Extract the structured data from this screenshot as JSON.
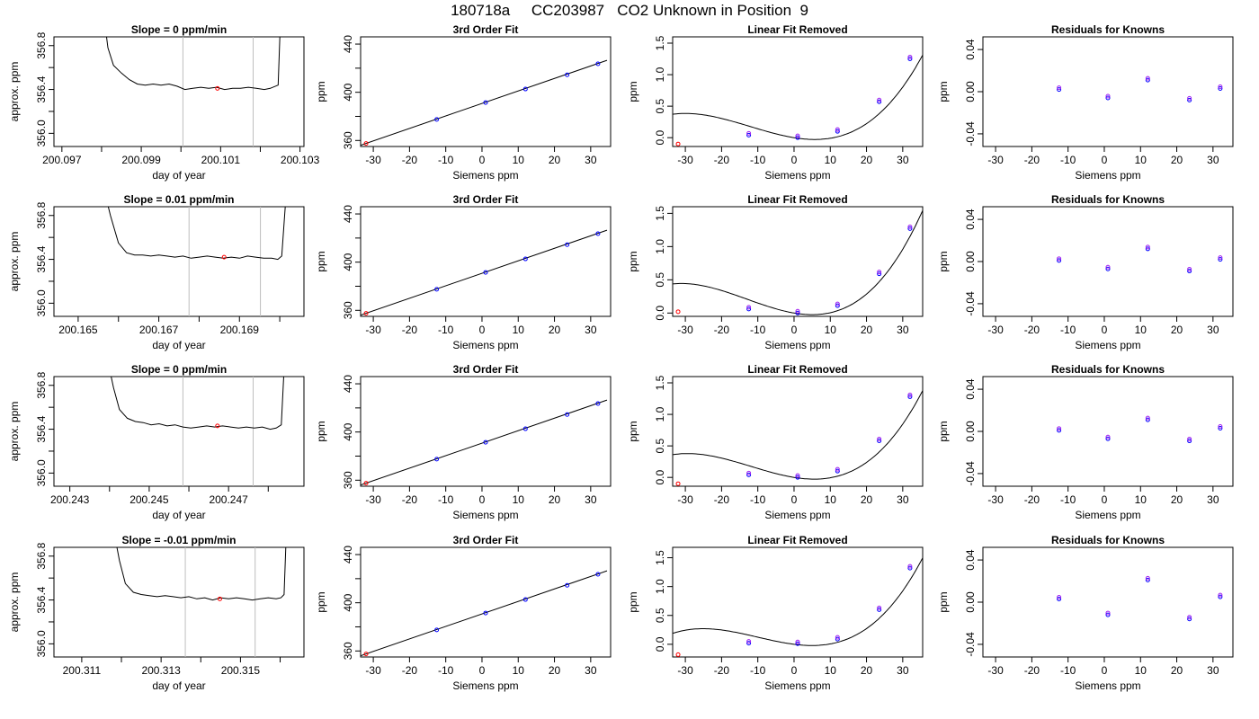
{
  "title": "180718a     CC203987   CO2 Unknown in Position  9",
  "colors": {
    "data_line": "#000000",
    "points_known": "#0000ff",
    "points_known_alt": "#a020f0",
    "point_unknown": "#ff0000",
    "guide": "#bebebe"
  },
  "chart_data": [
    {
      "type": "line",
      "panel": "time-series",
      "title": "Slope =  0  ppm/min",
      "xlabel": "day of year",
      "ylabel": "approx. ppm",
      "xlim": [
        200.0968,
        200.1031
      ],
      "ylim": [
        355.88,
        356.88
      ],
      "xticks": [
        200.097,
        200.098,
        200.099,
        200.1,
        200.101,
        200.102,
        200.103
      ],
      "xtick_labels": [
        "200.097",
        "",
        "200.099",
        "",
        "200.101",
        "",
        "200.103"
      ],
      "yticks": [
        356.0,
        356.2,
        356.4,
        356.6,
        356.8
      ],
      "ytick_labels": [
        "356.0",
        "",
        "356.4",
        "",
        "356.8"
      ],
      "vlines": [
        200.10005,
        200.10182
      ],
      "series": [
        {
          "x": [
            200.0981,
            200.09816,
            200.0983,
            200.0985,
            200.0987,
            200.0989,
            200.0991,
            200.0993,
            200.0995,
            200.0997,
            200.0999,
            200.1001,
            200.1003,
            200.1005,
            200.1007,
            200.1009,
            200.1011,
            200.1013,
            200.1015,
            200.1017,
            200.1019,
            200.1021,
            200.10225,
            200.10245,
            200.1025
          ],
          "y": [
            356.95,
            356.78,
            356.62,
            356.55,
            356.49,
            356.45,
            356.44,
            356.45,
            356.44,
            356.45,
            356.43,
            356.4,
            356.41,
            356.42,
            356.41,
            356.42,
            356.4,
            356.41,
            356.41,
            356.42,
            356.41,
            356.4,
            356.41,
            356.44,
            356.95
          ]
        }
      ],
      "marker": {
        "x": 200.10092,
        "y": 356.41
      }
    },
    {
      "type": "scatter",
      "panel": "fit",
      "title": "3rd Order Fit",
      "xlabel": "Siemens ppm",
      "ylabel": "ppm",
      "xlim": [
        -33.5,
        35.5
      ],
      "ylim": [
        355,
        446
      ],
      "xticks": [
        -30,
        -20,
        -10,
        0,
        10,
        20,
        30
      ],
      "yticks": [
        360,
        380,
        400,
        420,
        440
      ],
      "ytick_labels": [
        "360",
        "",
        "400",
        "",
        "440"
      ],
      "x": [
        -32,
        -12.5,
        1,
        12,
        23.5,
        32
      ],
      "y": [
        357.5,
        377.5,
        391.5,
        402.7,
        414.5,
        423.6
      ],
      "curve": {
        "x1": -33.5,
        "y1": 356.0,
        "x2": 34.5,
        "y2": 426.5
      }
    },
    {
      "type": "scatter",
      "panel": "linear-removed",
      "title": "Linear Fit Removed",
      "xlabel": "Siemens ppm",
      "ylabel": "ppm",
      "xlim": [
        -33.5,
        35.5
      ],
      "ylim": [
        -0.14,
        1.6
      ],
      "xticks": [
        -30,
        -20,
        -10,
        0,
        10,
        20,
        30
      ],
      "yticks": [
        0.0,
        0.5,
        1.0,
        1.5
      ],
      "ytick_labels": [
        "0.0",
        "0.5",
        "1.0",
        "1.5"
      ],
      "x": [
        -32,
        -12.5,
        1,
        12,
        23.5,
        32
      ],
      "y": [
        -0.1,
        0.04,
        0.0,
        0.1,
        0.57,
        1.25
      ],
      "poly": [
        0.0,
        -0.0093,
        0.00066,
        1.81e-05
      ]
    },
    {
      "type": "scatter",
      "panel": "residuals",
      "title": "Residuals for Knowns",
      "xlabel": "Siemens ppm",
      "ylabel": "ppm",
      "xlim": [
        -33.5,
        35.5
      ],
      "ylim": [
        -0.052,
        0.052
      ],
      "xticks": [
        -30,
        -20,
        -10,
        0,
        10,
        20,
        30
      ],
      "yticks": [
        -0.04,
        0.0,
        0.04
      ],
      "ytick_labels": [
        "-0.04",
        "0.00",
        "0.04"
      ],
      "x": [
        -12.5,
        1,
        12,
        23.5,
        32
      ],
      "y": [
        0.002,
        -0.006,
        0.011,
        -0.008,
        0.003
      ]
    },
    {
      "type": "line",
      "panel": "time-series",
      "title": "Slope =  0.01  ppm/min",
      "xlabel": "day of year",
      "ylabel": "approx. ppm",
      "xlim": [
        200.1644,
        200.1706
      ],
      "ylim": [
        355.88,
        356.88
      ],
      "xticks": [
        200.165,
        200.166,
        200.167,
        200.168,
        200.169,
        200.17
      ],
      "xtick_labels": [
        "200.165",
        "",
        "200.167",
        "",
        "200.169",
        ""
      ],
      "yticks": [
        356.0,
        356.2,
        356.4,
        356.6,
        356.8
      ],
      "ytick_labels": [
        "356.0",
        "",
        "356.4",
        "",
        "356.8"
      ],
      "vlines": [
        200.16775,
        200.16952
      ],
      "series": [
        {
          "x": [
            200.1657,
            200.1658,
            200.166,
            200.1662,
            200.1664,
            200.1666,
            200.1668,
            200.167,
            200.1672,
            200.1674,
            200.1676,
            200.1678,
            200.168,
            200.1682,
            200.1684,
            200.1686,
            200.1688,
            200.169,
            200.1692,
            200.1694,
            200.1696,
            200.1698,
            200.16995,
            200.17005,
            200.17015
          ],
          "y": [
            356.95,
            356.8,
            356.55,
            356.46,
            356.44,
            356.44,
            356.43,
            356.44,
            356.43,
            356.42,
            356.43,
            356.41,
            356.42,
            356.43,
            356.42,
            356.41,
            356.42,
            356.41,
            356.43,
            356.42,
            356.41,
            356.41,
            356.4,
            356.43,
            356.95
          ]
        }
      ],
      "marker": {
        "x": 200.16862,
        "y": 356.42
      }
    },
    {
      "type": "scatter",
      "panel": "fit",
      "title": "3rd Order Fit",
      "xlabel": "Siemens ppm",
      "ylabel": "ppm",
      "xlim": [
        -33.5,
        35.5
      ],
      "ylim": [
        355,
        446
      ],
      "xticks": [
        -30,
        -20,
        -10,
        0,
        10,
        20,
        30
      ],
      "yticks": [
        360,
        380,
        400,
        420,
        440
      ],
      "ytick_labels": [
        "360",
        "",
        "400",
        "",
        "440"
      ],
      "x": [
        -32,
        -12.5,
        1,
        12,
        23.5,
        32
      ],
      "y": [
        357.5,
        377.5,
        391.5,
        402.7,
        414.5,
        423.6
      ],
      "curve": {
        "x1": -33.5,
        "y1": 356.0,
        "x2": 34.5,
        "y2": 426.5
      }
    },
    {
      "type": "scatter",
      "panel": "linear-removed",
      "title": "Linear Fit Removed",
      "xlabel": "Siemens ppm",
      "ylabel": "ppm",
      "xlim": [
        -33.5,
        35.5
      ],
      "ylim": [
        -0.05,
        1.6
      ],
      "xticks": [
        -30,
        -20,
        -10,
        0,
        10,
        20,
        30
      ],
      "yticks": [
        0.0,
        0.5,
        1.0,
        1.5
      ],
      "ytick_labels": [
        "0.0",
        "0.5",
        "1.0",
        "1.5"
      ],
      "x": [
        -32,
        -12.5,
        1,
        12,
        23.5,
        32
      ],
      "y": [
        0.02,
        0.06,
        0.0,
        0.11,
        0.59,
        1.27
      ],
      "poly": [
        0.0,
        -0.0093,
        0.00078,
        1.99e-05
      ]
    },
    {
      "type": "scatter",
      "panel": "residuals",
      "title": "Residuals for Knowns",
      "xlabel": "Siemens ppm",
      "ylabel": "ppm",
      "xlim": [
        -33.5,
        35.5
      ],
      "ylim": [
        -0.052,
        0.052
      ],
      "xticks": [
        -30,
        -20,
        -10,
        0,
        10,
        20,
        30
      ],
      "yticks": [
        -0.04,
        0.0,
        0.04
      ],
      "ytick_labels": [
        "-0.04",
        "0.00",
        "0.04"
      ],
      "x": [
        -12.5,
        1,
        12,
        23.5,
        32
      ],
      "y": [
        0.001,
        -0.007,
        0.012,
        -0.009,
        0.002
      ]
    },
    {
      "type": "line",
      "panel": "time-series",
      "title": "Slope =  0  ppm/min",
      "xlabel": "day of year",
      "ylabel": "approx. ppm",
      "xlim": [
        200.2426,
        200.2489
      ],
      "ylim": [
        355.88,
        356.88
      ],
      "xticks": [
        200.243,
        200.244,
        200.245,
        200.246,
        200.247,
        200.248
      ],
      "xtick_labels": [
        "200.243",
        "",
        "200.245",
        "",
        "200.247",
        ""
      ],
      "yticks": [
        356.0,
        356.2,
        356.4,
        356.6,
        356.8
      ],
      "ytick_labels": [
        "356.0",
        "",
        "356.4",
        "",
        "356.8"
      ],
      "vlines": [
        200.24585,
        200.24762
      ],
      "series": [
        {
          "x": [
            200.244,
            200.2441,
            200.24425,
            200.24445,
            200.24465,
            200.24485,
            200.24505,
            200.24525,
            200.24545,
            200.24565,
            200.24585,
            200.24605,
            200.24625,
            200.24645,
            200.24665,
            200.24685,
            200.24705,
            200.24725,
            200.24745,
            200.24765,
            200.24785,
            200.24805,
            200.2482,
            200.24833,
            200.2484
          ],
          "y": [
            356.95,
            356.78,
            356.58,
            356.5,
            356.47,
            356.46,
            356.44,
            356.45,
            356.43,
            356.44,
            356.42,
            356.41,
            356.42,
            356.43,
            356.42,
            356.43,
            356.42,
            356.41,
            356.42,
            356.41,
            356.42,
            356.4,
            356.41,
            356.44,
            356.95
          ]
        }
      ],
      "marker": {
        "x": 200.24672,
        "y": 356.43
      }
    },
    {
      "type": "scatter",
      "panel": "fit",
      "title": "3rd Order Fit",
      "xlabel": "Siemens ppm",
      "ylabel": "ppm",
      "xlim": [
        -33.5,
        35.5
      ],
      "ylim": [
        355,
        446
      ],
      "xticks": [
        -30,
        -20,
        -10,
        0,
        10,
        20,
        30
      ],
      "yticks": [
        360,
        380,
        400,
        420,
        440
      ],
      "ytick_labels": [
        "360",
        "",
        "400",
        "",
        "440"
      ],
      "x": [
        -32,
        -12.5,
        1,
        12,
        23.5,
        32
      ],
      "y": [
        357.5,
        377.5,
        391.5,
        402.7,
        414.5,
        423.6
      ],
      "curve": {
        "x1": -33.5,
        "y1": 356.0,
        "x2": 34.5,
        "y2": 426.5
      }
    },
    {
      "type": "scatter",
      "panel": "linear-removed",
      "title": "Linear Fit Removed",
      "xlabel": "Siemens ppm",
      "ylabel": "ppm",
      "xlim": [
        -33.5,
        35.5
      ],
      "ylim": [
        -0.14,
        1.6
      ],
      "xticks": [
        -30,
        -20,
        -10,
        0,
        10,
        20,
        30
      ],
      "yticks": [
        0.0,
        0.5,
        1.0,
        1.5
      ],
      "ytick_labels": [
        "0.0",
        "0.5",
        "1.0",
        "1.5"
      ],
      "x": [
        -32,
        -12.5,
        1,
        12,
        23.5,
        32
      ],
      "y": [
        -0.1,
        0.04,
        0.0,
        0.1,
        0.58,
        1.28
      ],
      "poly": [
        0.0,
        -0.0093,
        0.00068,
        1.9e-05
      ]
    },
    {
      "type": "scatter",
      "panel": "residuals",
      "title": "Residuals for Knowns",
      "xlabel": "Siemens ppm",
      "ylabel": "ppm",
      "xlim": [
        -33.5,
        35.5
      ],
      "ylim": [
        -0.052,
        0.052
      ],
      "xticks": [
        -30,
        -20,
        -10,
        0,
        10,
        20,
        30
      ],
      "yticks": [
        -0.04,
        0.0,
        0.04
      ],
      "ytick_labels": [
        "-0.04",
        "0.00",
        "0.04"
      ],
      "x": [
        -12.5,
        1,
        12,
        23.5,
        32
      ],
      "y": [
        0.001,
        -0.007,
        0.011,
        -0.009,
        0.003
      ]
    },
    {
      "type": "line",
      "panel": "time-series",
      "title": "Slope =  -0.01  ppm/min",
      "xlabel": "day of year",
      "ylabel": "approx. ppm",
      "xlim": [
        200.3103,
        200.3166
      ],
      "ylim": [
        355.88,
        356.88
      ],
      "xticks": [
        200.311,
        200.312,
        200.313,
        200.314,
        200.315,
        200.316
      ],
      "xtick_labels": [
        "200.311",
        "",
        "200.313",
        "",
        "200.315",
        ""
      ],
      "yticks": [
        356.0,
        356.2,
        356.4,
        356.6,
        356.8
      ],
      "ytick_labels": [
        "356.0",
        "",
        "356.4",
        "",
        "356.8"
      ],
      "vlines": [
        200.31361,
        200.31537
      ],
      "series": [
        {
          "x": [
            200.31185,
            200.31195,
            200.3121,
            200.3123,
            200.3125,
            200.3127,
            200.3129,
            200.3131,
            200.3133,
            200.3135,
            200.3137,
            200.3139,
            200.3141,
            200.3143,
            200.3145,
            200.3147,
            200.3149,
            200.3151,
            200.3153,
            200.3155,
            200.3157,
            200.3159,
            200.31602,
            200.3161,
            200.31615
          ],
          "y": [
            356.95,
            356.76,
            356.55,
            356.47,
            356.45,
            356.44,
            356.43,
            356.44,
            356.43,
            356.42,
            356.43,
            356.41,
            356.42,
            356.4,
            356.42,
            356.41,
            356.42,
            356.41,
            356.4,
            356.41,
            356.42,
            356.41,
            356.42,
            356.45,
            356.95
          ]
        }
      ],
      "marker": {
        "x": 200.31448,
        "y": 356.41
      }
    },
    {
      "type": "scatter",
      "panel": "fit",
      "title": "3rd Order Fit",
      "xlabel": "Siemens ppm",
      "ylabel": "ppm",
      "xlim": [
        -33.5,
        35.5
      ],
      "ylim": [
        355,
        446
      ],
      "xticks": [
        -30,
        -20,
        -10,
        0,
        10,
        20,
        30
      ],
      "yticks": [
        360,
        380,
        400,
        420,
        440
      ],
      "ytick_labels": [
        "360",
        "",
        "400",
        "",
        "440"
      ],
      "x": [
        -32,
        -12.5,
        1,
        12,
        23.5,
        32
      ],
      "y": [
        357.5,
        377.5,
        391.5,
        402.7,
        414.5,
        423.6
      ],
      "curve": {
        "x1": -33.5,
        "y1": 356.0,
        "x2": 34.5,
        "y2": 426.5
      }
    },
    {
      "type": "scatter",
      "panel": "linear-removed",
      "title": "Linear Fit Removed",
      "xlabel": "Siemens ppm",
      "ylabel": "ppm",
      "xlim": [
        -33.5,
        35.5
      ],
      "ylim": [
        -0.22,
        1.68
      ],
      "xticks": [
        -30,
        -20,
        -10,
        0,
        10,
        20,
        30
      ],
      "yticks": [
        0.0,
        0.5,
        1.0,
        1.5
      ],
      "ytick_labels": [
        "0.0",
        "0.5",
        "1.0",
        "1.5"
      ],
      "x": [
        -32,
        -12.5,
        1,
        12,
        23.5,
        32
      ],
      "y": [
        -0.18,
        0.02,
        0.01,
        0.09,
        0.6,
        1.32
      ],
      "poly": [
        0.0,
        -0.008,
        0.00065,
        2.15e-05
      ]
    },
    {
      "type": "scatter",
      "panel": "residuals",
      "title": "Residuals for Knowns",
      "xlabel": "Siemens ppm",
      "ylabel": "ppm",
      "xlim": [
        -33.5,
        35.5
      ],
      "ylim": [
        -0.052,
        0.052
      ],
      "xticks": [
        -30,
        -20,
        -10,
        0,
        10,
        20,
        30
      ],
      "yticks": [
        -0.04,
        0.0,
        0.04
      ],
      "ytick_labels": [
        "-0.04",
        "0.00",
        "0.04"
      ],
      "x": [
        -12.5,
        1,
        12,
        23.5,
        32
      ],
      "y": [
        0.003,
        -0.012,
        0.021,
        -0.016,
        0.005
      ]
    }
  ]
}
